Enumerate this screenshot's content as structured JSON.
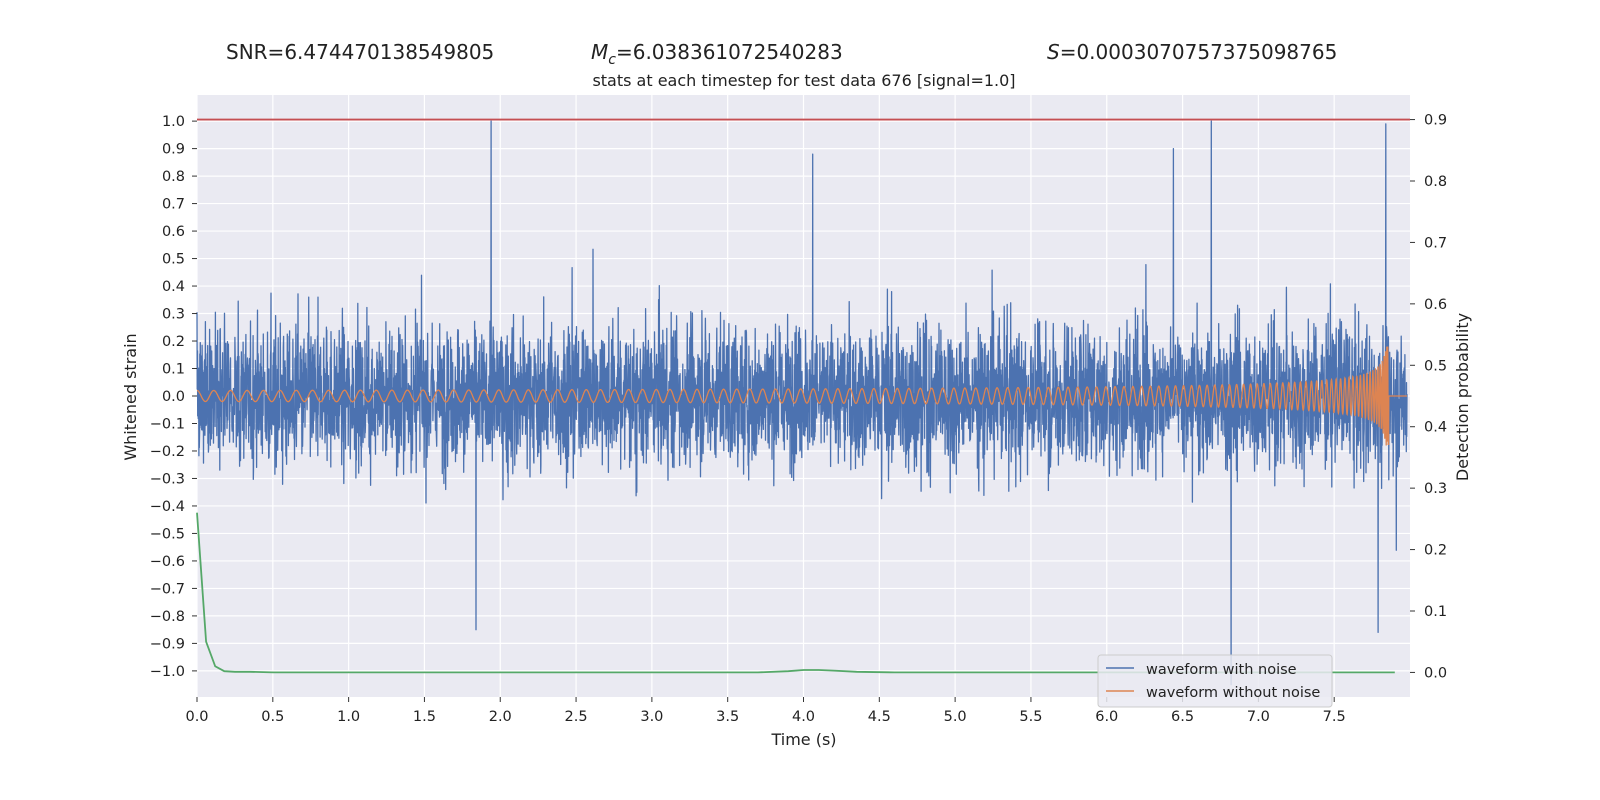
{
  "header": {
    "snr_label": "SNR=",
    "snr_value": "6.474470138549805",
    "mc_symbol": "M",
    "mc_sub": "c",
    "mc_value": "=6.038361072540283",
    "s_symbol": "S",
    "s_value": "=0.0003070757375098765"
  },
  "chart_data": {
    "type": "line",
    "title": "stats at each timestep for test data 676 [signal=1.0]",
    "xlabel": "Time (s)",
    "ylabel": "Whitened strain",
    "y2label": "Detection probability",
    "xlim": [
      0.0,
      8.0
    ],
    "ylim": [
      -1.095,
      1.095
    ],
    "y2lim": [
      -0.04,
      0.94
    ],
    "x_ticks": [
      "0.0",
      "0.5",
      "1.0",
      "1.5",
      "2.0",
      "2.5",
      "3.0",
      "3.5",
      "4.0",
      "4.5",
      "5.0",
      "5.5",
      "6.0",
      "6.5",
      "7.0",
      "7.5"
    ],
    "y_ticks": [
      "1.0",
      "0.9",
      "0.8",
      "0.7",
      "0.6",
      "0.5",
      "0.4",
      "0.3",
      "0.2",
      "0.1",
      "0.0",
      "−0.1",
      "−0.2",
      "−0.3",
      "−0.4",
      "−0.5",
      "−0.6",
      "−0.7",
      "−0.8",
      "−0.9",
      "−1.0"
    ],
    "y2_ticks": [
      "0.9",
      "0.8",
      "0.7",
      "0.6",
      "0.5",
      "0.4",
      "0.3",
      "0.2",
      "0.1",
      "0.0"
    ],
    "grid": true,
    "legend_position": "lower-right",
    "colors": {
      "noisy": "#4c72b0",
      "clean": "#dd8452",
      "probability": "#55a868",
      "threshold": "#c44e52",
      "background": "#eaeaf2"
    },
    "series": [
      {
        "name": "waveform with noise",
        "description_values": "dense noise, typical envelope about ±0.4, peaks",
        "peaks": [
          {
            "x": 1.94,
            "y": 1.0
          },
          {
            "x": 6.69,
            "y": 1.0
          },
          {
            "x": 7.84,
            "y": 0.99
          },
          {
            "x": 4.06,
            "y": 0.88
          },
          {
            "x": 6.44,
            "y": 0.9
          },
          {
            "x": 6.82,
            "y": -1.05
          },
          {
            "x": 1.84,
            "y": -0.85
          },
          {
            "x": 7.79,
            "y": -0.86
          }
        ],
        "envelope": 0.42
      },
      {
        "name": "waveform without noise",
        "start_x": 0.0,
        "merger_x": 7.86,
        "amp_start": 0.02,
        "amp_peak": 0.18
      },
      {
        "name": "",
        "axis": "y2",
        "x": [
          0.0,
          0.06,
          0.12,
          0.18,
          0.25,
          0.35,
          0.5,
          1.0,
          2.0,
          3.0,
          3.7,
          3.9,
          4.0,
          4.1,
          4.2,
          4.35,
          4.6,
          5.0,
          6.0,
          7.0,
          7.9
        ],
        "values": [
          0.26,
          0.05,
          0.01,
          0.002,
          0.001,
          0.001,
          0.0,
          0.0,
          0.0,
          0.0,
          0.0,
          0.002,
          0.004,
          0.004,
          0.003,
          0.001,
          0.0,
          0.0,
          0.0,
          0.0,
          0.0
        ]
      },
      {
        "name": "",
        "axis": "y2",
        "type": "hline",
        "value": 0.9
      }
    ]
  }
}
